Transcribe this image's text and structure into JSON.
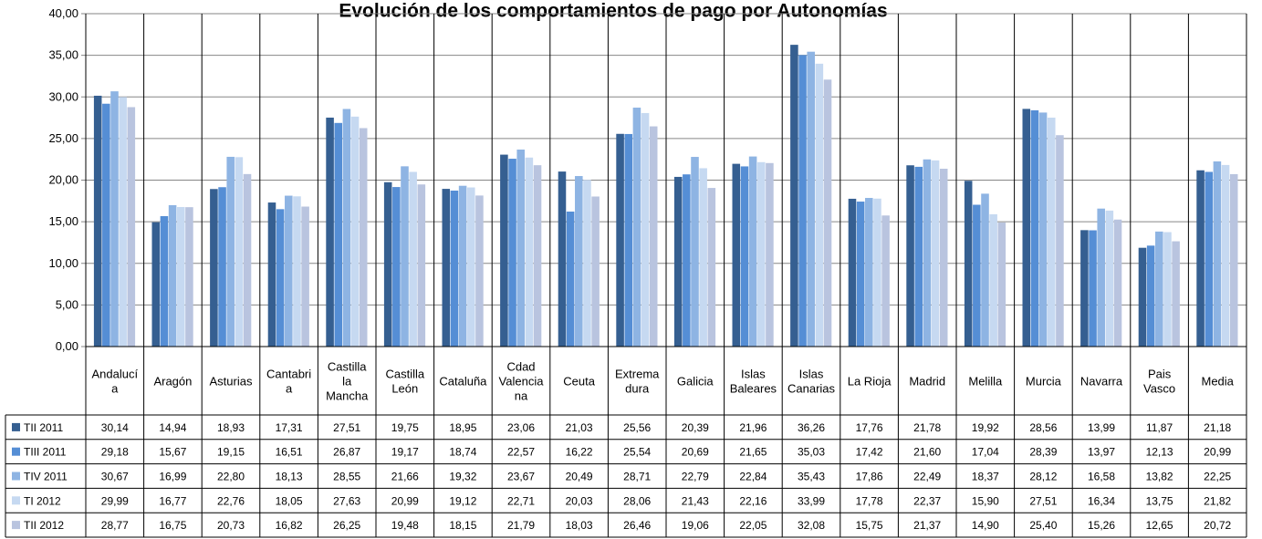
{
  "chart_data": {
    "type": "bar",
    "title": "Evolución de los comportamientos de pago por Autonomías",
    "xlabel": "",
    "ylabel": "",
    "ylim": [
      0,
      40
    ],
    "yticks": [
      "0,00",
      "5,00",
      "10,00",
      "15,00",
      "20,00",
      "25,00",
      "30,00",
      "35,00",
      "40,00"
    ],
    "grid": true,
    "legend": "data-table",
    "categories": [
      [
        "Andalucí",
        "a"
      ],
      [
        "Aragón"
      ],
      [
        "Asturias"
      ],
      [
        "Cantabri",
        "a"
      ],
      [
        "Castilla",
        "la",
        "Mancha"
      ],
      [
        "Castilla",
        "León"
      ],
      [
        "Cataluña"
      ],
      [
        "Cdad",
        "Valencia",
        "na"
      ],
      [
        "Ceuta"
      ],
      [
        "Extrema",
        "dura"
      ],
      [
        "Galicia"
      ],
      [
        "Islas",
        "Baleares"
      ],
      [
        "Islas",
        "Canarias"
      ],
      [
        "La Rioja"
      ],
      [
        "Madrid"
      ],
      [
        "Melilla"
      ],
      [
        "Murcia"
      ],
      [
        "Navarra"
      ],
      [
        "Pais",
        "Vasco"
      ],
      [
        "Media"
      ]
    ],
    "series": [
      {
        "name": "TII 2011",
        "color": "#355f91",
        "values": [
          30.14,
          14.94,
          18.93,
          17.31,
          27.51,
          19.75,
          18.95,
          23.06,
          21.03,
          25.56,
          20.39,
          21.96,
          36.26,
          17.76,
          21.78,
          19.92,
          28.56,
          13.99,
          11.87,
          21.18
        ],
        "labels": [
          "30,14",
          "14,94",
          "18,93",
          "17,31",
          "27,51",
          "19,75",
          "18,95",
          "23,06",
          "21,03",
          "25,56",
          "20,39",
          "21,96",
          "36,26",
          "17,76",
          "21,78",
          "19,92",
          "28,56",
          "13,99",
          "11,87",
          "21,18"
        ]
      },
      {
        "name": "TIII 2011",
        "color": "#558ed5",
        "values": [
          29.18,
          15.67,
          19.15,
          16.51,
          26.87,
          19.17,
          18.74,
          22.57,
          16.22,
          25.54,
          20.69,
          21.65,
          35.03,
          17.42,
          21.6,
          17.04,
          28.39,
          13.97,
          12.13,
          20.99
        ],
        "labels": [
          "29,18",
          "15,67",
          "19,15",
          "16,51",
          "26,87",
          "19,17",
          "18,74",
          "22,57",
          "16,22",
          "25,54",
          "20,69",
          "21,65",
          "35,03",
          "17,42",
          "21,60",
          "17,04",
          "28,39",
          "13,97",
          "12,13",
          "20,99"
        ]
      },
      {
        "name": "TIV 2011",
        "color": "#8eb4e3",
        "values": [
          30.67,
          16.99,
          22.8,
          18.13,
          28.55,
          21.66,
          19.32,
          23.67,
          20.49,
          28.71,
          22.79,
          22.84,
          35.43,
          17.86,
          22.49,
          18.37,
          28.12,
          16.58,
          13.82,
          22.25
        ],
        "labels": [
          "30,67",
          "16,99",
          "22,80",
          "18,13",
          "28,55",
          "21,66",
          "19,32",
          "23,67",
          "20,49",
          "28,71",
          "22,79",
          "22,84",
          "35,43",
          "17,86",
          "22,49",
          "18,37",
          "28,12",
          "16,58",
          "13,82",
          "22,25"
        ]
      },
      {
        "name": "TI 2012",
        "color": "#c6d9f1",
        "values": [
          29.99,
          16.77,
          22.76,
          18.05,
          27.63,
          20.99,
          19.12,
          22.71,
          20.03,
          28.06,
          21.43,
          22.16,
          33.99,
          17.78,
          22.37,
          15.9,
          27.51,
          16.34,
          13.75,
          21.82
        ],
        "labels": [
          "29,99",
          "16,77",
          "22,76",
          "18,05",
          "27,63",
          "20,99",
          "19,12",
          "22,71",
          "20,03",
          "28,06",
          "21,43",
          "22,16",
          "33,99",
          "17,78",
          "22,37",
          "15,90",
          "27,51",
          "16,34",
          "13,75",
          "21,82"
        ]
      },
      {
        "name": "TII 2012",
        "color": "#b9c4df",
        "values": [
          28.77,
          16.75,
          20.73,
          16.82,
          26.25,
          19.48,
          18.15,
          21.79,
          18.03,
          26.46,
          19.06,
          22.05,
          32.08,
          15.75,
          21.37,
          14.9,
          25.4,
          15.26,
          12.65,
          20.72
        ],
        "labels": [
          "28,77",
          "16,75",
          "20,73",
          "16,82",
          "26,25",
          "19,48",
          "18,15",
          "21,79",
          "18,03",
          "26,46",
          "19,06",
          "22,05",
          "32,08",
          "15,75",
          "21,37",
          "14,90",
          "25,40",
          "15,26",
          "12,65",
          "20,72"
        ]
      }
    ]
  }
}
